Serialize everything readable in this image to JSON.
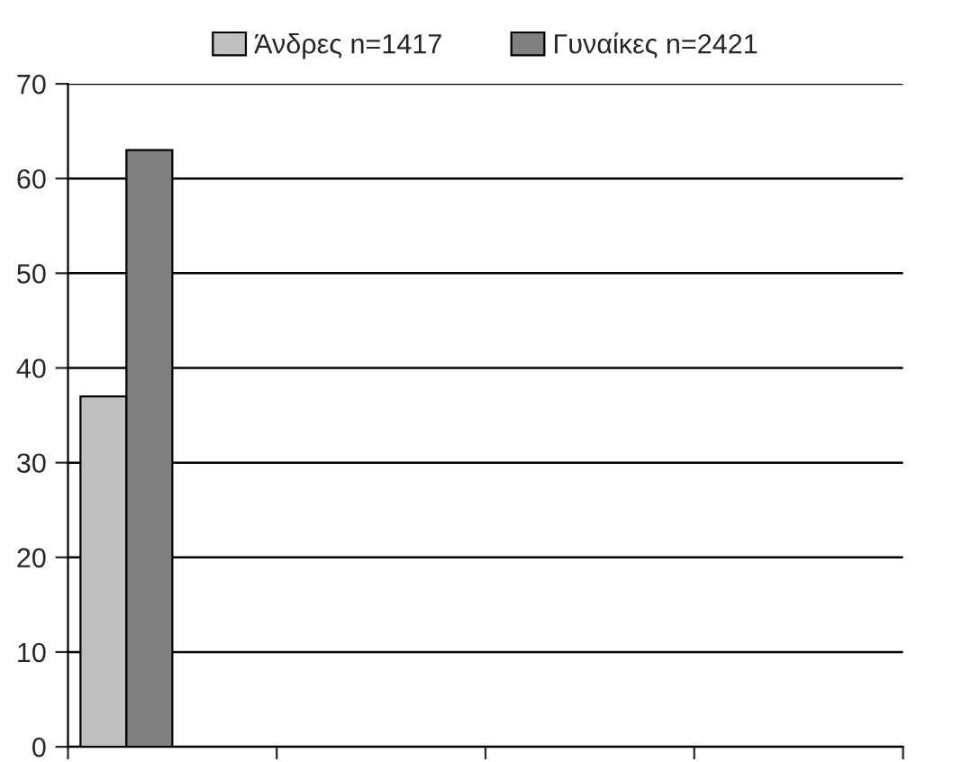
{
  "chart_data": {
    "type": "bar",
    "categories": [
      null,
      null,
      null,
      null
    ],
    "series": [
      {
        "name": "Άνδρες n=1417",
        "color": "#c0c0c0",
        "values": [
          37,
          null,
          null,
          null
        ]
      },
      {
        "name": "Γυναίκες n=2421",
        "color": "#808080",
        "values": [
          63,
          null,
          null,
          null
        ]
      }
    ],
    "ylim": [
      0,
      70
    ],
    "yticks": [
      0,
      10,
      20,
      30,
      40,
      50,
      60,
      70
    ],
    "grid": "y",
    "legend": "top"
  }
}
